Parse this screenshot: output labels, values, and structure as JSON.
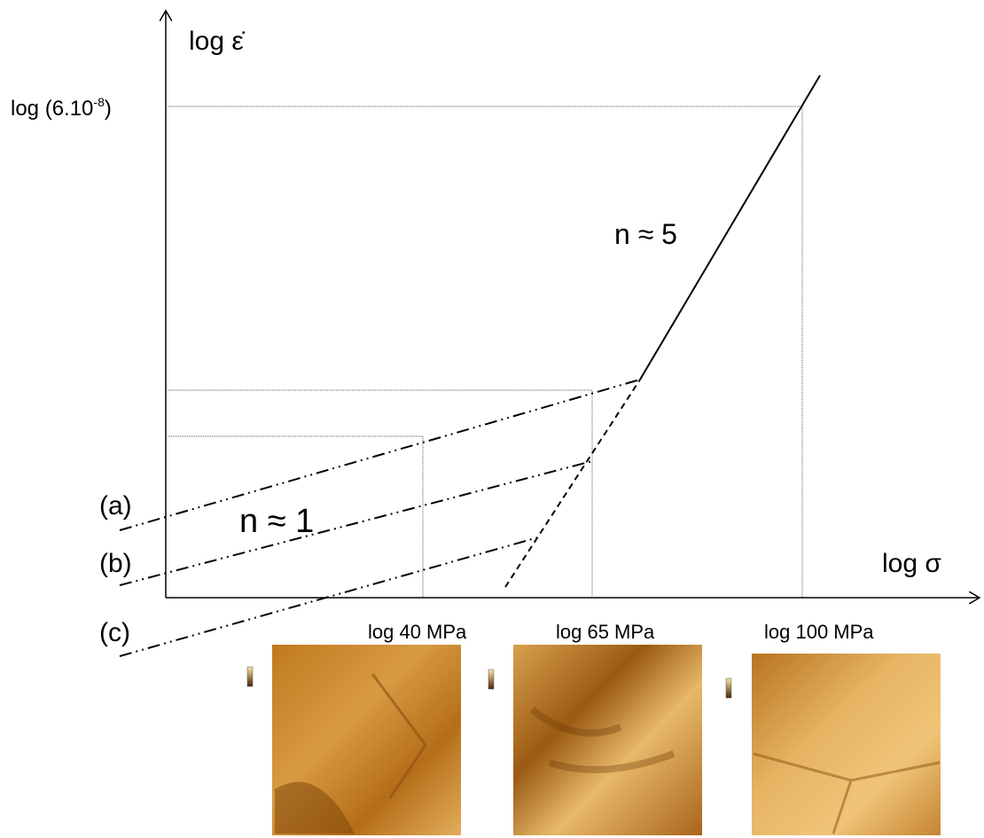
{
  "axes": {
    "y_label": "log ε̇",
    "x_label": "log σ",
    "y_tick": {
      "base": "log (6.10",
      "exponent": "-8",
      "close": ")"
    }
  },
  "annotations": {
    "slope_high": "n ≈ 5",
    "slope_low": "n ≈ 1"
  },
  "curves": [
    "(a)",
    "(b)",
    "(c)"
  ],
  "micrographs": [
    {
      "label": "log 40 MPa"
    },
    {
      "label": "log 65 MPa"
    },
    {
      "label": "log 100 MPa"
    }
  ]
}
